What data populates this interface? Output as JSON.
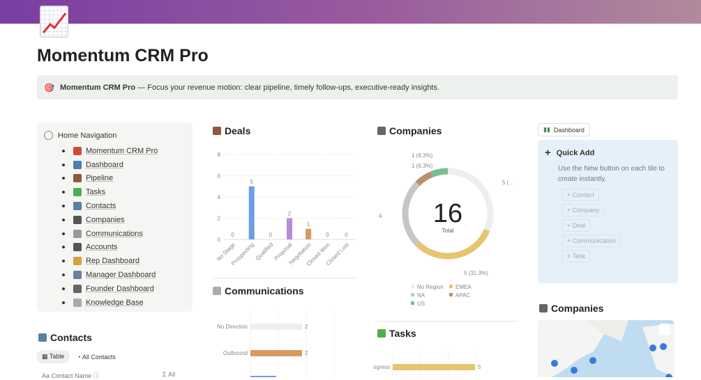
{
  "page": {
    "title": "Momentum CRM Pro",
    "icon": "chart-increasing-icon"
  },
  "callout": {
    "icon": "target-icon",
    "bold": "Momentum CRM Pro",
    "text": " — Focus your revenue motion: clear pipeline, timely follow-ups, executive-ready insights."
  },
  "nav": {
    "title": "Home Navigation",
    "items": [
      {
        "label": "Momentum CRM Pro",
        "color": "#d04a3a"
      },
      {
        "label": "Dashboard",
        "color": "#4a7fb0"
      },
      {
        "label": "Pipeline",
        "color": "#8a5a3a"
      },
      {
        "label": "Tasks",
        "color": "#4caf50"
      },
      {
        "label": "Contacts",
        "color": "#5a7fa0"
      },
      {
        "label": "Companies",
        "color": "#555"
      },
      {
        "label": "Communications",
        "color": "#999"
      },
      {
        "label": "Accounts",
        "color": "#555"
      },
      {
        "label": "Rep Dashboard",
        "color": "#d4a040"
      },
      {
        "label": "Manager Dashboard",
        "color": "#6a80a0"
      },
      {
        "label": "Founder Dashboard",
        "color": "#666"
      },
      {
        "label": "Knowledge Base",
        "color": "#aaa"
      }
    ]
  },
  "deals": {
    "title": "Deals"
  },
  "communications": {
    "title": "Communications"
  },
  "companies": {
    "title": "Companies",
    "center_value": "16",
    "center_label": "Total"
  },
  "tasks": {
    "title": "Tasks"
  },
  "contacts": {
    "title": "Contacts",
    "tab_table": "Table",
    "tab_all": "All Contacts",
    "col_name": "Contact Name",
    "col_all": "All"
  },
  "dashboard_button": "Dashboard",
  "quick_add": {
    "title": "Quick Add",
    "text": "Use the New button on each tile to create instantly.",
    "buttons": [
      "Contact",
      "Company",
      "Deal",
      "Communication",
      "Task"
    ]
  },
  "companies_map": {
    "title": "Companies"
  },
  "chart_data": [
    {
      "type": "bar",
      "title": "Deals",
      "categories": [
        "No Stage",
        "Prospecting",
        "Qualified",
        "Proposal",
        "Negotiation",
        "Closed Won",
        "Closed Lost"
      ],
      "values": [
        0,
        5,
        0,
        2,
        1,
        0,
        0
      ],
      "colors": [
        "#cccccc",
        "#6a9fe0",
        "#cccccc",
        "#b68cd6",
        "#d99a60",
        "#cccccc",
        "#cccccc"
      ],
      "yticks": [
        "0",
        "2",
        "4",
        "6",
        "8"
      ],
      "ylim": [
        0,
        8
      ]
    },
    {
      "type": "pie",
      "title": "Companies",
      "categories": [
        "No Region",
        "EMEA",
        "NA",
        "APAC",
        "US"
      ],
      "values": [
        5,
        5,
        4,
        1,
        1
      ],
      "colors": [
        "#eeeeee",
        "#e6c470",
        "#c6c6c6",
        "#b8906e",
        "#76be8e"
      ],
      "labels": [
        "5 (...",
        "5 (31.3%)",
        "4",
        "1 (6.3%)",
        "1 (6.3%)"
      ]
    },
    {
      "type": "bar",
      "title": "Communications",
      "orientation": "horizontal",
      "categories": [
        "No Direction",
        "Outbound"
      ],
      "values": [
        2,
        2
      ],
      "colors": [
        "#eeeeee",
        "#d99a60"
      ],
      "value_labels": [
        "2",
        "2"
      ]
    },
    {
      "type": "bar",
      "title": "Tasks",
      "orientation": "horizontal",
      "categories": [
        "In Progress"
      ],
      "values": [
        5
      ],
      "colors": [
        "#e6c470"
      ],
      "value_labels": [
        "5"
      ]
    }
  ]
}
